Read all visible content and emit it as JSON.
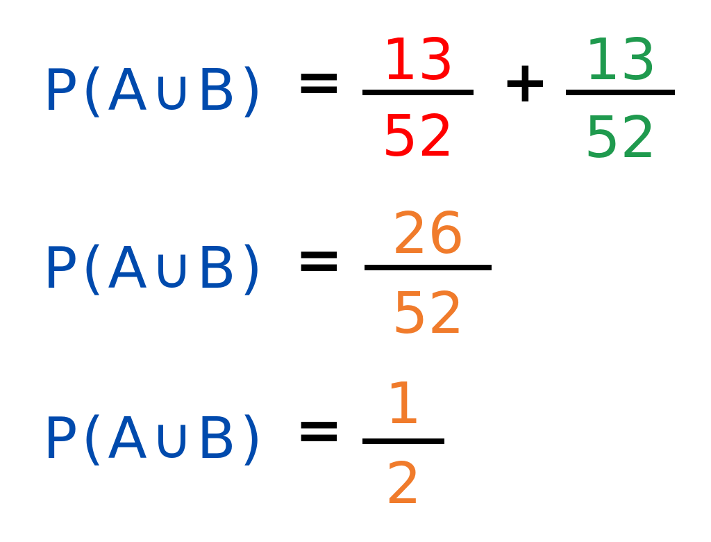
{
  "colors": {
    "lhs": "#004AAD",
    "red": "#FF0000",
    "green": "#1F9A4E",
    "orange": "#F07B2B",
    "operator": "#000000"
  },
  "rows": [
    {
      "lhs": "P(A∪B)",
      "equals": "=",
      "terms": [
        {
          "numerator": "13",
          "denominator": "52",
          "color": "red"
        },
        {
          "numerator": "13",
          "denominator": "52",
          "color": "green"
        }
      ],
      "operator": "+"
    },
    {
      "lhs": "P(A∪B)",
      "equals": "=",
      "terms": [
        {
          "numerator": "26",
          "denominator": "52",
          "color": "orange"
        }
      ]
    },
    {
      "lhs": "P(A∪B)",
      "equals": "=",
      "terms": [
        {
          "numerator": "1",
          "denominator": "2",
          "color": "orange"
        }
      ]
    }
  ]
}
